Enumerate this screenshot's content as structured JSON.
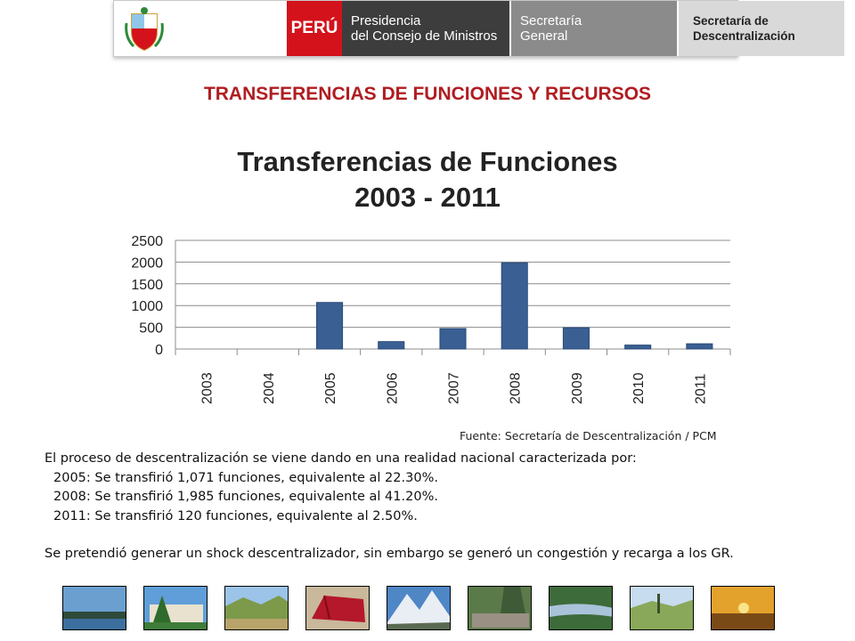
{
  "header": {
    "peru": "PERÚ",
    "pcm_line1": "Presidencia",
    "pcm_line2": "del Consejo de Ministros",
    "sg_line1": "Secretaría",
    "sg_line2": "General",
    "sd_line1": "Secretaría de",
    "sd_line2": "Descentralización"
  },
  "page_title": "TRANSFERENCIAS DE FUNCIONES Y RECURSOS",
  "chart_data": {
    "type": "bar",
    "title": "Transferencias de Funciones",
    "subtitle": "2003 - 2011",
    "categories": [
      "2003",
      "2004",
      "2005",
      "2006",
      "2007",
      "2008",
      "2009",
      "2010",
      "2011"
    ],
    "values": [
      0,
      0,
      1071,
      170,
      470,
      1985,
      490,
      90,
      120
    ],
    "ylim": [
      0,
      2500
    ],
    "yticks": [
      0,
      500,
      1000,
      1500,
      2000,
      2500
    ],
    "grid": true,
    "bar_color": "#3a5f93"
  },
  "source": "Fuente: Secretaría de Descentralización  / PCM",
  "text": {
    "intro": "El proceso de descentralización se viene dando en una realidad nacional caracterizada por:",
    "l2005": "2005:  Se transfirió 1,071 funciones, equivalente al 22.30%.",
    "l2008": "2008:  Se transfirió 1,985 funciones, equivalente al 41.20%.",
    "l2011": "2011:  Se transfirió 120 funciones, equivalente al 2.50%.",
    "closing": "Se pretendió generar un shock descentralizador, sin embargo se generó un congestión y recarga a los GR."
  },
  "colors": {
    "title_red": "#b01d21",
    "peru_red": "#d3121b",
    "pcm_dark": "#3d3d3d",
    "sg_grey": "#8b8b8b",
    "sd_light": "#d9d9d9"
  }
}
